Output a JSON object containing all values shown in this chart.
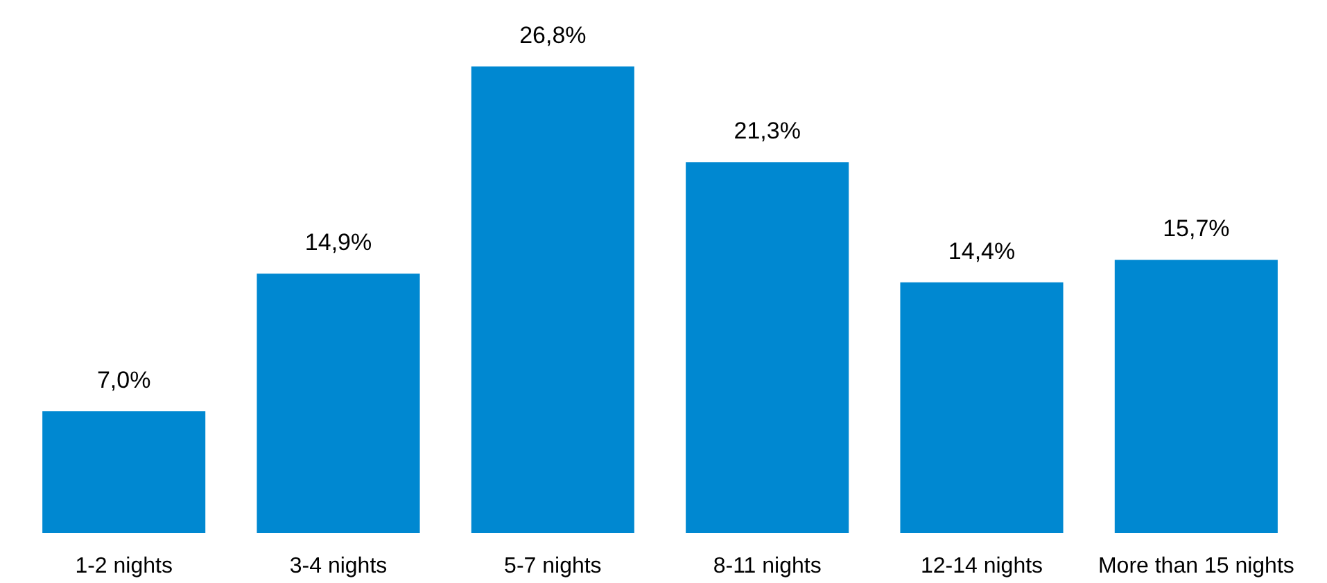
{
  "chart_data": {
    "type": "bar",
    "categories": [
      "1-2 nights",
      "3-4 nights",
      "5-7 nights",
      "8-11 nights",
      "12-14 nights",
      "More than 15 nights"
    ],
    "values": [
      7.0,
      14.9,
      26.8,
      21.3,
      14.4,
      15.7
    ],
    "value_labels": [
      "7,0%",
      "14,9%",
      "26,8%",
      "21,3%",
      "14,4%",
      "15,7%"
    ],
    "color": "#0088d1"
  }
}
